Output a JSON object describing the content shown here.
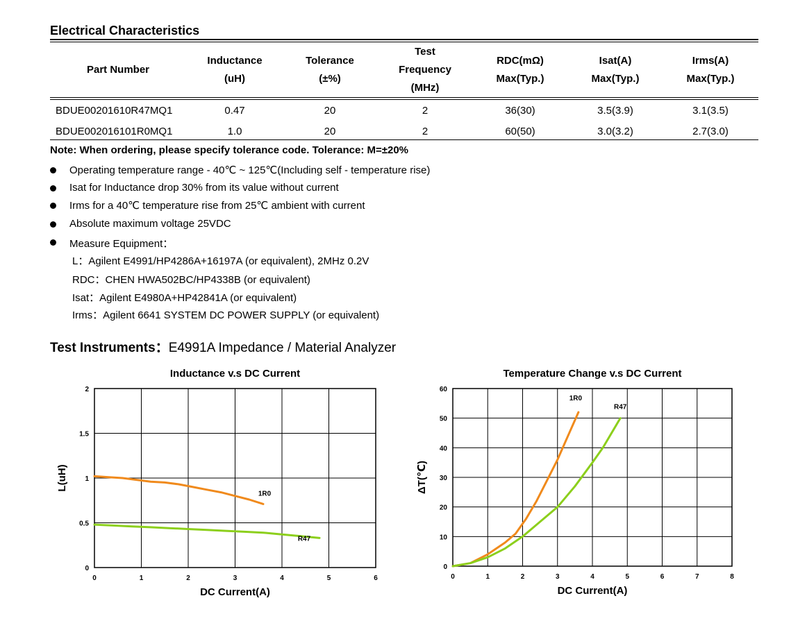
{
  "section_title": "Electrical Characteristics",
  "table": {
    "headers": {
      "part_number": "Part Number",
      "inductance": [
        "Inductance",
        "(uH)"
      ],
      "tolerance": [
        "Tolerance",
        "(±%)"
      ],
      "test_frequency": [
        "Test",
        "Frequency",
        "(MHz)"
      ],
      "rdc": [
        "RDC(mΩ)",
        "Max(Typ.)"
      ],
      "isat": [
        "Isat(A)",
        "Max(Typ.)"
      ],
      "irms": [
        "Irms(A)",
        "Max(Typ.)"
      ]
    },
    "rows": [
      {
        "part": "BDUE00201610R47MQ1",
        "inductance": "0.47",
        "tolerance": "20",
        "freq": "2",
        "rdc": "36(30)",
        "isat": "3.5(3.9)",
        "irms": "3.1(3.5)"
      },
      {
        "part": "BDUE002016101R0MQ1",
        "inductance": "1.0",
        "tolerance": "20",
        "freq": "2",
        "rdc": "60(50)",
        "isat": "3.0(3.2)",
        "irms": "2.7(3.0)"
      }
    ]
  },
  "note": "Note: When ordering, please specify tolerance code. Tolerance: M=±20%",
  "bullets": [
    "Operating temperature range - 40℃ ~ 125℃(Including self - temperature rise)",
    "Isat for Inductance drop 30% from its value without current",
    "Irms for a 40℃  temperature rise from 25℃  ambient with current",
    "Absolute maximum voltage 25VDC",
    "Measure Equipment："
  ],
  "equipment": [
    "L：Agilent E4991/HP4286A+16197A (or equivalent), 2MHz 0.2V",
    "RDC：CHEN HWA502BC/HP4338B (or equivalent)",
    "Isat：Agilent E4980A+HP42841A (or equivalent)",
    "Irms：Agilent 6641 SYSTEM DC POWER SUPPLY (or equivalent)"
  ],
  "instruments": {
    "label": "Test Instruments：",
    "value": "E4991A Impedance / Material Analyzer"
  },
  "colors": {
    "orange": "#f08a1c",
    "green": "#8ccf1c"
  },
  "chart_data": [
    {
      "type": "line",
      "title": "Inductance v.s DC Current",
      "xlabel": "DC Current(A)",
      "ylabel": "L(uH)",
      "xlim": [
        0,
        6
      ],
      "ylim": [
        0,
        2
      ],
      "xticks": [
        "0",
        "1",
        "2",
        "3",
        "4",
        "5",
        "6"
      ],
      "yticks": [
        "0",
        "0.5",
        "1",
        "1.5",
        "2"
      ],
      "grid": true,
      "series": [
        {
          "name": "1R0",
          "color": "#f08a1c",
          "x": [
            0,
            0.3,
            0.6,
            0.9,
            1.2,
            1.5,
            1.8,
            2.1,
            2.4,
            2.7,
            3.0,
            3.3,
            3.6
          ],
          "y": [
            1.02,
            1.01,
            1.0,
            0.98,
            0.96,
            0.95,
            0.93,
            0.9,
            0.87,
            0.84,
            0.8,
            0.76,
            0.71
          ]
        },
        {
          "name": "R47",
          "color": "#8ccf1c",
          "x": [
            0,
            0.4,
            0.8,
            1.2,
            1.6,
            2.0,
            2.4,
            2.8,
            3.2,
            3.6,
            4.0,
            4.4,
            4.8
          ],
          "y": [
            0.48,
            0.47,
            0.46,
            0.45,
            0.44,
            0.43,
            0.42,
            0.41,
            0.4,
            0.39,
            0.37,
            0.35,
            0.33
          ]
        }
      ]
    },
    {
      "type": "line",
      "title": "Temperature Change v.s DC Current",
      "xlabel": "DC Current(A)",
      "ylabel": "ΔT(℃)",
      "xlim": [
        0,
        8
      ],
      "ylim": [
        0,
        60
      ],
      "xticks": [
        "0",
        "1",
        "2",
        "3",
        "4",
        "5",
        "6",
        "7",
        "8"
      ],
      "yticks": [
        "0",
        "10",
        "20",
        "30",
        "40",
        "50",
        "60"
      ],
      "grid": true,
      "series": [
        {
          "name": "1R0",
          "color": "#f08a1c",
          "x": [
            0,
            0.5,
            1.0,
            1.5,
            1.8,
            2.1,
            2.4,
            2.7,
            3.0,
            3.3,
            3.6
          ],
          "y": [
            0,
            1,
            4,
            8,
            11,
            16,
            22,
            29,
            36,
            44,
            52
          ]
        },
        {
          "name": "R47",
          "color": "#8ccf1c",
          "x": [
            0,
            0.5,
            1.0,
            1.5,
            2.0,
            2.5,
            3.0,
            3.5,
            4.0,
            4.3,
            4.8
          ],
          "y": [
            0,
            1,
            3,
            6,
            10,
            15,
            20,
            27,
            35,
            40,
            50
          ]
        }
      ]
    }
  ]
}
